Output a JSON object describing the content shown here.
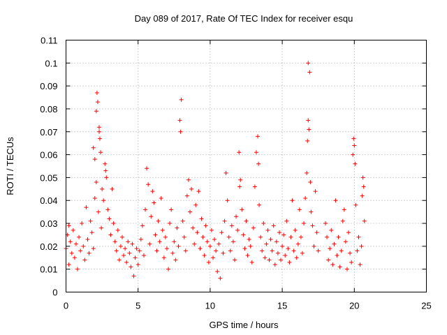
{
  "chart_data": {
    "type": "scatter",
    "title": "Day 089 of 2017, Rate Of TEC Index for receiver esqu",
    "xlabel": "GPS time / hours",
    "ylabel": "ROTI / TECUs",
    "xlim": [
      0,
      25
    ],
    "ylim": [
      0,
      0.11
    ],
    "xticks": [
      "0",
      "5",
      "10",
      "15",
      "20",
      "25"
    ],
    "yticks": [
      "0",
      "0.01",
      "0.02",
      "0.03",
      "0.04",
      "0.05",
      "0.06",
      "0.07",
      "0.08",
      "0.09",
      "0.1",
      "0.11"
    ],
    "grid": true,
    "marker": "+",
    "color": "#ff0000",
    "series": [
      {
        "points": [
          [
            0.0,
            0.019
          ],
          [
            0.1,
            0.025
          ],
          [
            0.2,
            0.029
          ],
          [
            0.2,
            0.012
          ],
          [
            0.3,
            0.022
          ],
          [
            0.4,
            0.017
          ],
          [
            0.5,
            0.027
          ],
          [
            0.6,
            0.015
          ],
          [
            0.7,
            0.021
          ],
          [
            0.8,
            0.01
          ],
          [
            0.9,
            0.024
          ],
          [
            1.0,
            0.018
          ],
          [
            1.1,
            0.03
          ],
          [
            1.2,
            0.02
          ],
          [
            1.3,
            0.014
          ],
          [
            1.4,
            0.037
          ],
          [
            1.5,
            0.023
          ],
          [
            1.6,
            0.017
          ],
          [
            1.7,
            0.031
          ],
          [
            1.8,
            0.026
          ],
          [
            1.9,
            0.063
          ],
          [
            1.9,
            0.019
          ],
          [
            2.0,
            0.058
          ],
          [
            2.0,
            0.041
          ],
          [
            2.1,
            0.048
          ],
          [
            2.1,
            0.079
          ],
          [
            2.15,
            0.087
          ],
          [
            2.2,
            0.083
          ],
          [
            2.25,
            0.035
          ],
          [
            2.3,
            0.07
          ],
          [
            2.3,
            0.072
          ],
          [
            2.35,
            0.067
          ],
          [
            2.4,
            0.061
          ],
          [
            2.45,
            0.028
          ],
          [
            2.5,
            0.045
          ],
          [
            2.6,
            0.04
          ],
          [
            2.7,
            0.056
          ],
          [
            2.75,
            0.053
          ],
          [
            2.8,
            0.05
          ],
          [
            2.9,
            0.036
          ],
          [
            3.0,
            0.032
          ],
          [
            3.1,
            0.025
          ],
          [
            3.2,
            0.045
          ],
          [
            3.3,
            0.03
          ],
          [
            3.4,
            0.022
          ],
          [
            3.5,
            0.018
          ],
          [
            3.6,
            0.027
          ],
          [
            3.7,
            0.014
          ],
          [
            3.8,
            0.02
          ],
          [
            3.9,
            0.024
          ],
          [
            4.0,
            0.016
          ],
          [
            4.1,
            0.019
          ],
          [
            4.2,
            0.013
          ],
          [
            4.3,
            0.022
          ],
          [
            4.4,
            0.017
          ],
          [
            4.5,
            0.011
          ],
          [
            4.6,
            0.021
          ],
          [
            4.7,
            0.007
          ],
          [
            4.8,
            0.015
          ],
          [
            4.9,
            0.019
          ],
          [
            5.0,
            0.012
          ],
          [
            5.1,
            0.018
          ],
          [
            5.2,
            0.023
          ],
          [
            5.3,
            0.029
          ],
          [
            5.4,
            0.016
          ],
          [
            5.5,
            0.036
          ],
          [
            5.6,
            0.054
          ],
          [
            5.7,
            0.047
          ],
          [
            5.8,
            0.021
          ],
          [
            5.9,
            0.033
          ],
          [
            6.0,
            0.044
          ],
          [
            6.1,
            0.039
          ],
          [
            6.2,
            0.025
          ],
          [
            6.3,
            0.018
          ],
          [
            6.4,
            0.031
          ],
          [
            6.5,
            0.022
          ],
          [
            6.6,
            0.041
          ],
          [
            6.7,
            0.027
          ],
          [
            6.8,
            0.015
          ],
          [
            6.9,
            0.024
          ],
          [
            7.0,
            0.019
          ],
          [
            7.1,
            0.01
          ],
          [
            7.2,
            0.03
          ],
          [
            7.3,
            0.036
          ],
          [
            7.4,
            0.017
          ],
          [
            7.5,
            0.022
          ],
          [
            7.6,
            0.014
          ],
          [
            7.7,
            0.028
          ],
          [
            7.8,
            0.02
          ],
          [
            7.9,
            0.075
          ],
          [
            7.95,
            0.07
          ],
          [
            8.0,
            0.084
          ],
          [
            8.1,
            0.031
          ],
          [
            8.2,
            0.024
          ],
          [
            8.3,
            0.018
          ],
          [
            8.4,
            0.042
          ],
          [
            8.5,
            0.049
          ],
          [
            8.6,
            0.035
          ],
          [
            8.7,
            0.045
          ],
          [
            8.8,
            0.028
          ],
          [
            8.9,
            0.021
          ],
          [
            9.0,
            0.038
          ],
          [
            9.1,
            0.026
          ],
          [
            9.2,
            0.044
          ],
          [
            9.3,
            0.019
          ],
          [
            9.4,
            0.032
          ],
          [
            9.5,
            0.024
          ],
          [
            9.6,
            0.016
          ],
          [
            9.7,
            0.029
          ],
          [
            9.8,
            0.022
          ],
          [
            9.9,
            0.013
          ],
          [
            10.0,
            0.02
          ],
          [
            10.1,
            0.027
          ],
          [
            10.2,
            0.015
          ],
          [
            10.3,
            0.023
          ],
          [
            10.4,
            0.018
          ],
          [
            10.5,
            0.009
          ],
          [
            10.6,
            0.021
          ],
          [
            10.7,
            0.006
          ],
          [
            10.8,
            0.026
          ],
          [
            10.9,
            0.017
          ],
          [
            11.0,
            0.031
          ],
          [
            11.1,
            0.052
          ],
          [
            11.2,
            0.04
          ],
          [
            11.3,
            0.024
          ],
          [
            11.4,
            0.018
          ],
          [
            11.5,
            0.029
          ],
          [
            11.6,
            0.022
          ],
          [
            11.7,
            0.014
          ],
          [
            11.8,
            0.033
          ],
          [
            11.9,
            0.027
          ],
          [
            12.0,
            0.061
          ],
          [
            12.05,
            0.046
          ],
          [
            12.1,
            0.049
          ],
          [
            12.2,
            0.036
          ],
          [
            12.3,
            0.025
          ],
          [
            12.4,
            0.019
          ],
          [
            12.5,
            0.031
          ],
          [
            12.6,
            0.016
          ],
          [
            12.7,
            0.023
          ],
          [
            12.8,
            0.02
          ],
          [
            12.9,
            0.013
          ],
          [
            13.0,
            0.028
          ],
          [
            13.1,
            0.046
          ],
          [
            13.2,
            0.061
          ],
          [
            13.3,
            0.068
          ],
          [
            13.35,
            0.056
          ],
          [
            13.4,
            0.038
          ],
          [
            13.5,
            0.024
          ],
          [
            13.6,
            0.018
          ],
          [
            13.7,
            0.03
          ],
          [
            13.8,
            0.015
          ],
          [
            13.9,
            0.021
          ],
          [
            14.0,
            0.027
          ],
          [
            14.1,
            0.014
          ],
          [
            14.2,
            0.023
          ],
          [
            14.3,
            0.018
          ],
          [
            14.4,
            0.029
          ],
          [
            14.5,
            0.012
          ],
          [
            14.6,
            0.022
          ],
          [
            14.7,
            0.017
          ],
          [
            14.8,
            0.026
          ],
          [
            14.9,
            0.014
          ],
          [
            15.0,
            0.02
          ],
          [
            15.1,
            0.025
          ],
          [
            15.2,
            0.016
          ],
          [
            15.3,
            0.031
          ],
          [
            15.4,
            0.019
          ],
          [
            15.5,
            0.013
          ],
          [
            15.6,
            0.024
          ],
          [
            15.7,
            0.04
          ],
          [
            15.8,
            0.018
          ],
          [
            15.9,
            0.027
          ],
          [
            16.0,
            0.015
          ],
          [
            16.1,
            0.021
          ],
          [
            16.2,
            0.036
          ],
          [
            16.3,
            0.024
          ],
          [
            16.4,
            0.017
          ],
          [
            16.5,
            0.03
          ],
          [
            16.6,
            0.041
          ],
          [
            16.7,
            0.052
          ],
          [
            16.75,
            0.066
          ],
          [
            16.8,
            0.075
          ],
          [
            16.8,
            0.1
          ],
          [
            16.85,
            0.071
          ],
          [
            16.9,
            0.096
          ],
          [
            16.95,
            0.048
          ],
          [
            17.0,
            0.035
          ],
          [
            17.1,
            0.029
          ],
          [
            17.2,
            0.02
          ],
          [
            17.3,
            0.044
          ],
          [
            17.4,
            0.026
          ],
          [
            17.5,
            0.018
          ],
          [
            18.0,
            0.03
          ],
          [
            18.1,
            0.024
          ],
          [
            18.2,
            0.014
          ],
          [
            18.3,
            0.019
          ],
          [
            18.4,
            0.027
          ],
          [
            18.5,
            0.012
          ],
          [
            18.6,
            0.021
          ],
          [
            18.7,
            0.04
          ],
          [
            18.8,
            0.016
          ],
          [
            18.9,
            0.024
          ],
          [
            19.0,
            0.011
          ],
          [
            19.1,
            0.018
          ],
          [
            19.2,
            0.031
          ],
          [
            19.3,
            0.036
          ],
          [
            19.4,
            0.022
          ],
          [
            19.5,
            0.01
          ],
          [
            19.6,
            0.026
          ],
          [
            19.7,
            0.017
          ],
          [
            19.8,
            0.013
          ],
          [
            19.9,
            0.06
          ],
          [
            19.95,
            0.067
          ],
          [
            20.0,
            0.064
          ],
          [
            20.05,
            0.056
          ],
          [
            20.1,
            0.038
          ],
          [
            20.2,
            0.018
          ],
          [
            20.3,
            0.024
          ],
          [
            20.4,
            0.012
          ],
          [
            20.5,
            0.02
          ],
          [
            20.55,
            0.042
          ],
          [
            20.6,
            0.05
          ],
          [
            20.65,
            0.046
          ],
          [
            20.7,
            0.031
          ]
        ]
      }
    ]
  }
}
